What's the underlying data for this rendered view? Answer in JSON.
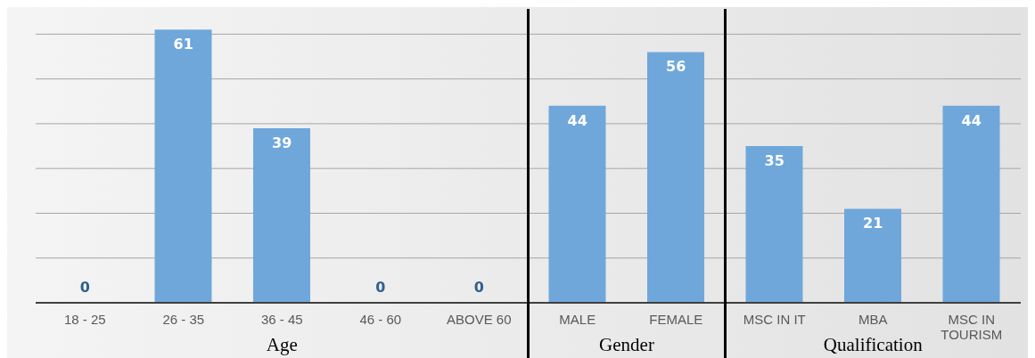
{
  "chart_data": {
    "type": "bar",
    "categories": [
      "18 - 25",
      "26 - 35",
      "36 - 45",
      "46 - 60",
      "ABOVE 60",
      "MALE",
      "FEMALE",
      "MSC IN IT",
      "MBA",
      "MSC IN TOURISM"
    ],
    "values": [
      0,
      61,
      39,
      0,
      0,
      44,
      56,
      35,
      21,
      44
    ],
    "color": "#6fa7db",
    "yticks": [
      0,
      10,
      20,
      30,
      40,
      50,
      60
    ],
    "tick_labels": "x",
    "grid": "y",
    "data_labels": true,
    "annotations": [
      "Age",
      "Gender",
      "Qualification"
    ]
  }
}
